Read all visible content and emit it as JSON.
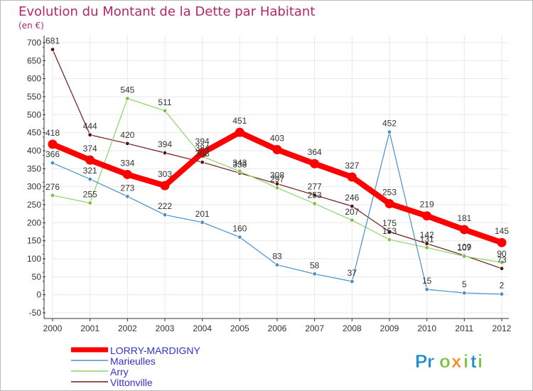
{
  "header": {
    "title": "Evolution du Montant de la Dette par Habitant",
    "unit": "(en €)"
  },
  "logo": {
    "text": "Proxiti"
  },
  "colors": {
    "title": "#b0286b",
    "axis": "#333333",
    "grid": "#e8e8e8",
    "border": "#999999",
    "logo_p": "#1a8ccf",
    "logo_r": "#1a8ccf",
    "logo_o": "#7cc241",
    "logo_x": "#f08a1c",
    "logo_i": "#7cc241",
    "logo_t": "#1a8ccf"
  },
  "chart_data": {
    "type": "line",
    "title": "Evolution du Montant de la Dette par Habitant",
    "ylabel": "(en €)",
    "x": [
      "2000",
      "2001",
      "2002",
      "2003",
      "2004",
      "2005",
      "2006",
      "2007",
      "2008",
      "2009",
      "2010",
      "2011",
      "2012"
    ],
    "ylim": [
      -50,
      700
    ],
    "yticks": [
      -50,
      0,
      50,
      100,
      150,
      200,
      250,
      300,
      350,
      400,
      450,
      500,
      550,
      600,
      650,
      700
    ],
    "grid": true,
    "legend_position": "bottom-left",
    "series": [
      {
        "name": "Vittonville",
        "color": "#6b1a1a",
        "marker": "#5a1111",
        "width": 1.2,
        "dot": 2.8,
        "values": [
          681,
          444,
          420,
          394,
          368,
          338,
          308,
          277,
          246,
          175,
          142,
          109,
          73
        ]
      },
      {
        "name": "Arry",
        "color": "#8fd36a",
        "marker": "#7cc241",
        "width": 1.2,
        "dot": 2.8,
        "values": [
          276,
          255,
          545,
          511,
          384,
          343,
          297,
          253,
          207,
          153,
          131,
          107,
          90
        ]
      },
      {
        "name": "Marieulles",
        "color": "#4a90c8",
        "marker": "#4a90c8",
        "width": 1.2,
        "dot": 2.8,
        "values": [
          366,
          321,
          273,
          222,
          201,
          160,
          83,
          58,
          37,
          452,
          15,
          5,
          2
        ]
      },
      {
        "name": "LORRY-MARDIGNY",
        "color": "#ff0000",
        "marker": "#ff0000",
        "width": 8,
        "dot": 6.5,
        "values": [
          418,
          374,
          334,
          303,
          394,
          451,
          403,
          364,
          327,
          253,
          219,
          181,
          145
        ]
      }
    ],
    "legend_order": [
      "LORRY-MARDIGNY",
      "Marieulles",
      "Arry",
      "Vittonville"
    ]
  }
}
